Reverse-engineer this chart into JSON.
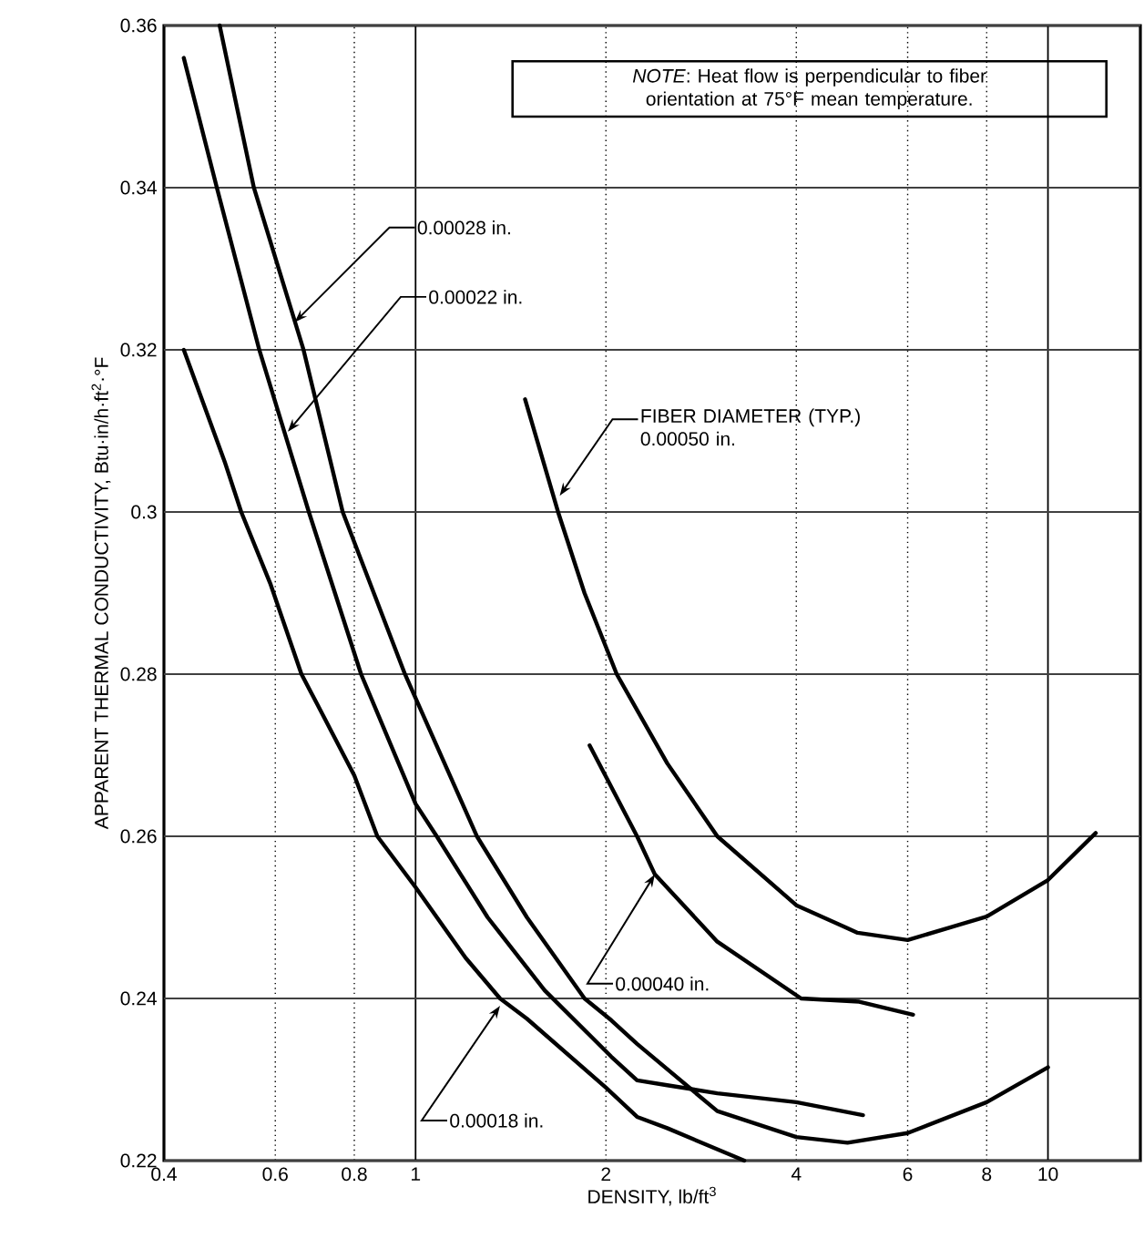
{
  "chart_data": {
    "type": "line",
    "xlabel": "DENSITY, lb/ft$^{3}$",
    "ylabel": "APPARENT THERMAL CONDUCTIVITY, Btu·in/h·ft$^{2}$·°F",
    "log": "x",
    "grid": true,
    "marker": "none",
    "line_style": "solid",
    "xlim": [
      0.4,
      14
    ],
    "xticks": [
      0.4,
      0.6,
      0.8,
      1,
      2,
      4,
      6,
      8,
      10
    ],
    "ylim": [
      0.22,
      0.36
    ],
    "yticks": [
      0.22,
      0.24,
      0.26,
      0.28,
      0.3,
      0.32,
      0.34,
      0.36
    ],
    "series": [
      {
        "color": "#000000",
        "x": [
          0.43,
          0.5,
          0.53,
          0.589,
          0.66,
          0.7,
          0.8,
          0.87,
          1,
          1.2,
          1.36,
          1.5,
          2,
          2.24,
          2.5,
          3.31
        ],
        "values": [
          0.32,
          0.306,
          0.3,
          0.2912,
          0.28,
          0.2762,
          0.2675,
          0.26,
          0.2537,
          0.245,
          0.24,
          0.2375,
          0.229,
          0.2254,
          0.224,
          0.22
        ]
      },
      {
        "color": "#000000",
        "x": [
          0.43,
          0.485,
          0.566,
          0.678,
          0.82,
          1,
          1.08,
          1.3,
          1.6,
          2.04,
          2.24,
          2.5,
          3,
          4,
          5.1
        ],
        "values": [
          0.356,
          0.34,
          0.32,
          0.3,
          0.28,
          0.264,
          0.26,
          0.25,
          0.241,
          0.2328,
          0.2299,
          0.2293,
          0.2283,
          0.2272,
          0.2256
        ]
      },
      {
        "color": "#000000",
        "x": [
          0.49,
          0.555,
          0.665,
          0.767,
          0.962,
          1.25,
          1.5,
          1.85,
          2.04,
          2.24,
          3,
          4,
          4.82,
          6,
          8,
          10
        ],
        "values": [
          0.36,
          0.34,
          0.32,
          0.3,
          0.28,
          0.26,
          0.25,
          0.24,
          0.2373,
          0.2344,
          0.2261,
          0.2229,
          0.2222,
          0.2234,
          0.2272,
          0.2315
        ]
      },
      {
        "color": "#000000",
        "x": [
          1.885,
          2.24,
          2.39,
          3,
          4.07,
          5.03,
          6.12
        ],
        "values": [
          0.2712,
          0.26,
          0.2553,
          0.247,
          0.24,
          0.2396,
          0.238
        ]
      },
      {
        "color": "#000000",
        "x": [
          1.49,
          1.68,
          1.85,
          2.08,
          2.5,
          3,
          4,
          5,
          6,
          8,
          10,
          11.9
        ],
        "values": [
          0.3139,
          0.3,
          0.29,
          0.28,
          0.269,
          0.26,
          0.2515,
          0.2481,
          0.2472,
          0.2501,
          0.2546,
          0.2604
        ]
      }
    ],
    "annotations": [
      "*NOTE*: Heat flow is perpendicular to fiber orientation at 75°F mean temperature.",
      {
        "text": "0.00028 in.",
        "x": 0.644,
        "y": 0.3234
      },
      {
        "text": "0.00022 in.",
        "x": 0.628,
        "y": 0.3099
      },
      {
        "text": "FIBER DIAMETER (TYP.) 0.00050 in.",
        "x": 1.69,
        "y": 0.302
      },
      {
        "text": "0.00040 in.",
        "x": 2.39,
        "y": 0.2553
      },
      {
        "text": "0.00018 in.",
        "x": 1.36,
        "y": 0.2391
      }
    ]
  }
}
